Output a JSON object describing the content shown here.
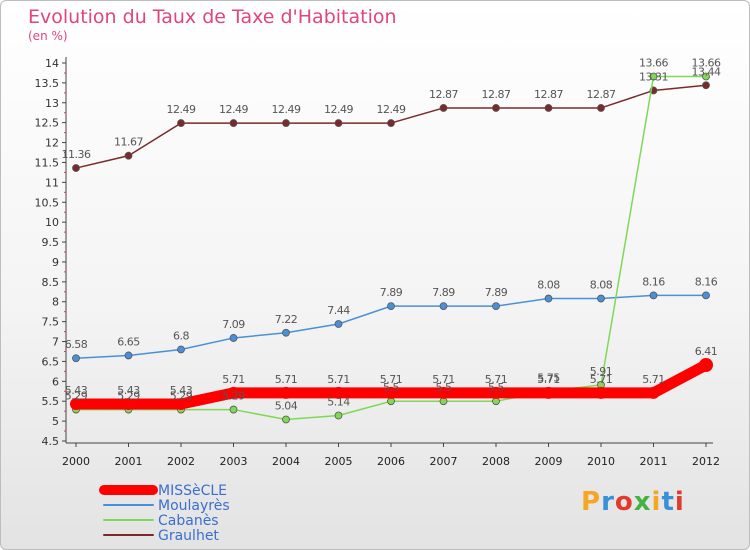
{
  "title": "Evolution du Taux de Taxe d'Habitation",
  "subtitle": "(en %)",
  "brand": {
    "text": "Proxiti",
    "colors": [
      "#f5a623",
      "#3a8fd9",
      "#e03b2c",
      "#46b246",
      "#f5a623",
      "#3a8fd9",
      "#e03b2c"
    ]
  },
  "chart_data": {
    "type": "line",
    "categories": [
      "2000",
      "2001",
      "2002",
      "2003",
      "2004",
      "2005",
      "2006",
      "2007",
      "2008",
      "2009",
      "2010",
      "2011",
      "2012"
    ],
    "ylim": [
      4.5,
      14
    ],
    "yticks": [
      "4.5",
      "5",
      "5.5",
      "6",
      "6.5",
      "7",
      "7.5",
      "8",
      "8.5",
      "9",
      "9.5",
      "10",
      "10.5",
      "11",
      "11.5",
      "12",
      "12.5",
      "13",
      "13.5",
      "14"
    ],
    "grid": false,
    "legend_position": "bottom-left",
    "series": [
      {
        "name": "MISSèCLE",
        "color": "#ff0000",
        "highlight": true,
        "values": [
          5.43,
          5.43,
          5.43,
          5.71,
          5.71,
          5.71,
          5.71,
          5.71,
          5.71,
          5.71,
          5.71,
          5.71,
          6.41
        ],
        "labels": [
          "5.43",
          "5.43",
          "5.43",
          "5.71",
          "5.71",
          "5.71",
          "5.71",
          "5.71",
          "5.71",
          "5.71",
          "5.71",
          "5.71",
          "6.41"
        ]
      },
      {
        "name": "Moulayrès",
        "color": "#4a90d9",
        "values": [
          6.58,
          6.65,
          6.8,
          7.09,
          7.22,
          7.44,
          7.89,
          7.89,
          7.89,
          8.08,
          8.08,
          8.16,
          8.16
        ],
        "labels": [
          "6.58",
          "6.65",
          "6.8",
          "7.09",
          "7.22",
          "7.44",
          "7.89",
          "7.89",
          "7.89",
          "8.08",
          "8.08",
          "8.16",
          "8.16"
        ]
      },
      {
        "name": "Cabanès",
        "color": "#7ed957",
        "values": [
          5.29,
          5.29,
          5.29,
          5.29,
          5.04,
          5.14,
          5.5,
          5.5,
          5.5,
          5.75,
          5.91,
          13.66,
          13.66
        ],
        "labels": [
          "5.29",
          "5.29",
          "5.29",
          "5.29",
          "5.04",
          "5.14",
          "5.5",
          "5.5",
          "5.5",
          "5.75",
          "5.91",
          "13.66",
          "13.66"
        ]
      },
      {
        "name": "Graulhet",
        "color": "#7a2a2a",
        "values": [
          11.36,
          11.67,
          12.49,
          12.49,
          12.49,
          12.49,
          12.49,
          12.87,
          12.87,
          12.87,
          12.87,
          13.31,
          13.44
        ],
        "labels": [
          "11.36",
          "11.67",
          "12.49",
          "12.49",
          "12.49",
          "12.49",
          "12.49",
          "12.87",
          "12.87",
          "12.87",
          "12.87",
          "13.31",
          "13.44"
        ]
      }
    ]
  }
}
